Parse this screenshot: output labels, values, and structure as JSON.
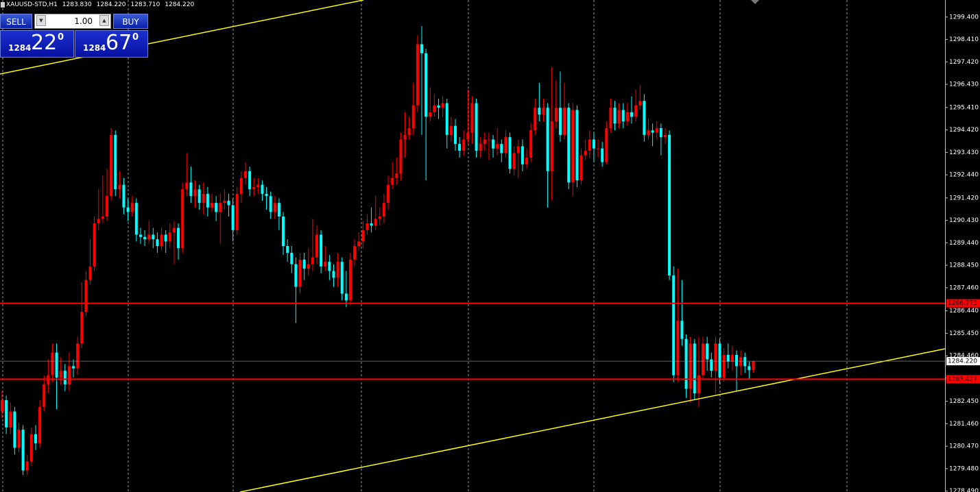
{
  "chart_data": {
    "type": "candlestick",
    "title": "XAUUSD-STD,H1",
    "header_ohlc": [
      "1283.830",
      "1284.220",
      "1283.710",
      "1284.220"
    ],
    "bull_color": "#ff0000",
    "bear_color": "#00ffff",
    "open": [
      1282.0,
      1282.5,
      1281.3,
      1282.0,
      1280.4,
      1281.2,
      1279.4,
      1279.8,
      1281.0,
      1280.6,
      1282.2,
      1283.2,
      1283.6,
      1284.6,
      1283.5,
      1283.8,
      1283.2,
      1284.0,
      1283.9,
      1285.0,
      1286.4,
      1287.8,
      1288.4,
      1290.3,
      1290.5,
      1290.6,
      1291.5,
      1294.2,
      1291.8,
      1292.0,
      1291.0,
      1290.8,
      1291.2,
      1289.8,
      1289.7,
      1289.6,
      1289.8,
      1289.6,
      1289.3,
      1289.8,
      1289.5,
      1289.9,
      1290.1,
      1289.2,
      1291.8,
      1292.1,
      1291.5,
      1291.8,
      1291.2,
      1291.6,
      1291.0,
      1291.2,
      1290.8,
      1291.2,
      1291.3,
      1291.1,
      1290.0,
      1291.6,
      1292.3,
      1292.6,
      1291.8,
      1291.9,
      1292.0,
      1291.6,
      1291.5,
      1290.8,
      1291.2,
      1290.6,
      1289.3,
      1289.0,
      1288.5,
      1287.5,
      1288.7,
      1288.3,
      1288.5,
      1288.8,
      1289.8,
      1288.4,
      1288.6,
      1288.2,
      1287.9,
      1288.6,
      1287.2,
      1286.9,
      1288.7,
      1289.3,
      1289.5,
      1290.0,
      1290.3,
      1290.2,
      1290.5,
      1290.6,
      1291.2,
      1292.0,
      1292.3,
      1292.5,
      1294.0,
      1294.2,
      1294.5,
      1295.5,
      1298.2,
      1297.8,
      1295.0,
      1295.2,
      1295.5,
      1295.4,
      1295.6,
      1294.2,
      1294.6,
      1293.8,
      1293.5,
      1294.0,
      1294.3,
      1295.6,
      1293.5,
      1293.8,
      1294.0,
      1294.0,
      1293.6,
      1293.8,
      1293.4,
      1294.1,
      1292.7,
      1293.4,
      1293.7,
      1292.9,
      1293.2,
      1294.4,
      1295.4,
      1295.1,
      1295.4,
      1292.6,
      1294.8,
      1295.4,
      1294.2,
      1295.4,
      1292.1,
      1295.3,
      1292.2,
      1293.3,
      1293.5,
      1294.0,
      1293.6,
      1293.6,
      1293.0,
      1294.5,
      1295.4,
      1294.7,
      1295.3,
      1294.8,
      1295.2,
      1295.0,
      1295.5,
      1295.7,
      1294.2,
      1294.4,
      1294.3,
      1294.5,
      1294.1,
      1294.2,
      1288.0,
      1283.6,
      1286.0,
      1285.2,
      1283.0,
      1285.0,
      1282.8,
      1283.6,
      1285.0,
      1284.3,
      1283.8,
      1285.0,
      1283.5,
      1284.5,
      1284.2,
      1284.5,
      1284.0,
      1284.4,
      1284.0,
      1283.83
    ],
    "high": [
      1282.9,
      1282.7,
      1282.4,
      1282.2,
      1281.5,
      1281.4,
      1280.1,
      1281.3,
      1281.4,
      1282.5,
      1283.6,
      1284.3,
      1285.0,
      1285.0,
      1284.4,
      1284.1,
      1284.6,
      1284.3,
      1285.3,
      1287.7,
      1288.2,
      1289.6,
      1290.6,
      1291.8,
      1292.4,
      1292.7,
      1294.5,
      1294.4,
      1292.6,
      1292.3,
      1291.4,
      1291.5,
      1291.4,
      1290.1,
      1290.0,
      1290.4,
      1290.1,
      1289.9,
      1290.1,
      1290.0,
      1290.3,
      1290.4,
      1290.3,
      1292.1,
      1293.4,
      1292.8,
      1292.2,
      1292.0,
      1292.1,
      1291.9,
      1291.6,
      1291.5,
      1291.6,
      1291.8,
      1291.6,
      1291.4,
      1291.9,
      1292.6,
      1293.0,
      1292.8,
      1292.3,
      1292.3,
      1292.2,
      1291.9,
      1291.7,
      1291.5,
      1291.4,
      1290.8,
      1289.6,
      1289.3,
      1288.8,
      1289.0,
      1289.0,
      1289.2,
      1290.5,
      1290.2,
      1290.0,
      1289.3,
      1288.9,
      1288.5,
      1289.0,
      1288.8,
      1288.2,
      1289.0,
      1289.6,
      1289.9,
      1290.4,
      1290.7,
      1291.0,
      1291.5,
      1291.0,
      1291.6,
      1292.4,
      1293.0,
      1293.2,
      1294.3,
      1295.2,
      1295.0,
      1296.5,
      1298.6,
      1299.0,
      1298.0,
      1296.3,
      1296.0,
      1295.8,
      1295.9,
      1295.8,
      1295.0,
      1294.9,
      1294.1,
      1294.4,
      1296.2,
      1295.9,
      1295.8,
      1294.1,
      1294.3,
      1294.3,
      1294.2,
      1294.5,
      1294.0,
      1294.4,
      1294.3,
      1293.7,
      1294.0,
      1294.0,
      1293.6,
      1294.7,
      1295.8,
      1296.5,
      1295.8,
      1295.6,
      1297.2,
      1296.6,
      1297.0,
      1296.5,
      1295.6,
      1295.6,
      1295.5,
      1293.6,
      1294.0,
      1294.4,
      1294.3,
      1294.0,
      1293.9,
      1294.8,
      1295.8,
      1295.7,
      1295.6,
      1295.6,
      1295.6,
      1295.9,
      1296.2,
      1296.4,
      1296.0,
      1294.9,
      1294.7,
      1294.8,
      1294.7,
      1294.5,
      1294.4,
      1288.4,
      1288.3,
      1287.8,
      1285.4,
      1285.3,
      1285.2,
      1285.3,
      1285.3,
      1285.3,
      1284.6,
      1285.3,
      1285.2,
      1284.8,
      1285.0,
      1284.9,
      1284.7,
      1284.7,
      1284.6,
      1284.2,
      1284.22
    ],
    "low": [
      1281.7,
      1281.0,
      1281.0,
      1280.1,
      1280.2,
      1279.2,
      1279.2,
      1279.6,
      1280.3,
      1280.4,
      1282.0,
      1282.8,
      1283.3,
      1282.1,
      1283.2,
      1282.9,
      1282.9,
      1283.5,
      1283.6,
      1284.8,
      1286.2,
      1287.6,
      1288.2,
      1290.0,
      1290.3,
      1290.4,
      1291.3,
      1291.5,
      1291.4,
      1290.7,
      1290.4,
      1290.6,
      1289.5,
      1289.4,
      1289.3,
      1289.4,
      1289.2,
      1289.0,
      1289.1,
      1289.0,
      1289.2,
      1288.5,
      1288.7,
      1289.0,
      1291.5,
      1291.2,
      1291.0,
      1290.9,
      1290.7,
      1290.6,
      1290.8,
      1290.4,
      1289.4,
      1290.9,
      1290.6,
      1289.5,
      1289.8,
      1291.2,
      1292.0,
      1291.5,
      1291.5,
      1291.6,
      1291.3,
      1290.9,
      1290.5,
      1290.5,
      1290.0,
      1288.9,
      1288.6,
      1288.1,
      1285.9,
      1287.2,
      1287.8,
      1288.0,
      1288.2,
      1288.5,
      1288.1,
      1288.2,
      1287.8,
      1287.5,
      1287.5,
      1286.9,
      1286.6,
      1286.7,
      1288.4,
      1289.1,
      1289.2,
      1289.8,
      1289.9,
      1290.0,
      1290.2,
      1290.3,
      1290.9,
      1291.8,
      1292.0,
      1292.2,
      1293.2,
      1294.0,
      1294.2,
      1295.2,
      1294.2,
      1292.2,
      1294.8,
      1295.0,
      1294.9,
      1295.0,
      1293.6,
      1293.9,
      1293.5,
      1293.2,
      1293.3,
      1293.8,
      1293.8,
      1293.2,
      1293.2,
      1293.5,
      1293.1,
      1293.2,
      1293.3,
      1293.0,
      1293.2,
      1292.5,
      1292.4,
      1292.3,
      1292.6,
      1292.7,
      1293.0,
      1294.2,
      1294.8,
      1294.8,
      1291.0,
      1291.3,
      1294.5,
      1293.9,
      1294.0,
      1291.8,
      1291.5,
      1291.9,
      1292.0,
      1293.1,
      1293.2,
      1293.0,
      1293.2,
      1292.8,
      1292.9,
      1294.3,
      1294.4,
      1294.5,
      1294.5,
      1294.6,
      1294.7,
      1294.8,
      1295.3,
      1293.9,
      1294.0,
      1293.7,
      1294.0,
      1293.3,
      1293.8,
      1287.8,
      1283.3,
      1283.3,
      1284.9,
      1282.6,
      1282.4,
      1282.5,
      1282.2,
      1283.4,
      1283.8,
      1283.5,
      1282.8,
      1283.2,
      1283.3,
      1283.9,
      1283.8,
      1282.9,
      1283.6,
      1283.7,
      1283.4,
      1283.71
    ],
    "close": [
      1282.5,
      1281.3,
      1282.0,
      1280.4,
      1281.2,
      1279.4,
      1279.8,
      1281.0,
      1280.6,
      1282.2,
      1283.2,
      1283.6,
      1284.6,
      1283.5,
      1283.8,
      1283.2,
      1284.0,
      1283.9,
      1285.0,
      1286.4,
      1287.8,
      1288.4,
      1290.3,
      1290.5,
      1290.6,
      1291.5,
      1294.2,
      1291.8,
      1292.0,
      1291.0,
      1290.8,
      1291.2,
      1289.8,
      1289.7,
      1289.6,
      1289.8,
      1289.6,
      1289.3,
      1289.8,
      1289.5,
      1289.9,
      1290.1,
      1289.2,
      1291.8,
      1292.1,
      1291.5,
      1291.8,
      1291.2,
      1291.6,
      1291.0,
      1291.2,
      1290.8,
      1291.2,
      1291.3,
      1291.1,
      1290.0,
      1291.6,
      1292.3,
      1292.6,
      1291.8,
      1291.9,
      1292.0,
      1291.6,
      1291.5,
      1290.8,
      1291.2,
      1290.6,
      1289.3,
      1289.0,
      1288.5,
      1287.5,
      1288.7,
      1288.3,
      1288.5,
      1288.8,
      1289.8,
      1288.4,
      1288.6,
      1288.2,
      1287.9,
      1288.6,
      1287.2,
      1286.9,
      1288.7,
      1289.3,
      1289.5,
      1290.0,
      1290.3,
      1290.2,
      1290.5,
      1290.6,
      1291.2,
      1292.0,
      1292.3,
      1292.5,
      1294.0,
      1294.2,
      1294.5,
      1295.5,
      1298.2,
      1297.8,
      1295.0,
      1295.2,
      1295.5,
      1295.4,
      1295.6,
      1294.2,
      1294.6,
      1293.8,
      1293.5,
      1294.0,
      1294.3,
      1295.6,
      1293.5,
      1293.8,
      1294.0,
      1294.0,
      1293.6,
      1293.8,
      1293.4,
      1294.1,
      1292.7,
      1293.4,
      1293.7,
      1292.9,
      1293.2,
      1294.4,
      1295.4,
      1295.1,
      1295.4,
      1292.6,
      1294.8,
      1295.4,
      1294.2,
      1295.4,
      1292.1,
      1295.3,
      1292.2,
      1293.3,
      1293.5,
      1294.0,
      1293.6,
      1293.6,
      1293.0,
      1294.5,
      1295.4,
      1294.7,
      1295.3,
      1294.8,
      1295.2,
      1295.0,
      1295.5,
      1295.7,
      1294.2,
      1294.4,
      1294.3,
      1294.5,
      1294.1,
      1294.2,
      1288.0,
      1283.6,
      1286.0,
      1285.2,
      1283.0,
      1285.0,
      1282.8,
      1283.6,
      1285.0,
      1284.3,
      1283.8,
      1285.0,
      1283.5,
      1284.5,
      1284.2,
      1284.5,
      1284.0,
      1284.4,
      1284.0,
      1283.83,
      1284.22
    ],
    "ylim": [
      1278.45,
      1300.15
    ],
    "yticks": [
      {
        "value": 1299.4,
        "label": "1299.400"
      },
      {
        "value": 1298.41,
        "label": "1298.410"
      },
      {
        "value": 1297.42,
        "label": "1297.420"
      },
      {
        "value": 1296.43,
        "label": "1296.430"
      },
      {
        "value": 1295.41,
        "label": "1295.410"
      },
      {
        "value": 1294.42,
        "label": "1294.420"
      },
      {
        "value": 1293.43,
        "label": "1293.430"
      },
      {
        "value": 1292.44,
        "label": "1292.440"
      },
      {
        "value": 1291.42,
        "label": "1291.420"
      },
      {
        "value": 1290.43,
        "label": "1290.430"
      },
      {
        "value": 1289.44,
        "label": "1289.440"
      },
      {
        "value": 1288.45,
        "label": "1288.450"
      },
      {
        "value": 1287.46,
        "label": "1287.460"
      },
      {
        "value": 1286.44,
        "label": "1286.440"
      },
      {
        "value": 1285.45,
        "label": "1285.450"
      },
      {
        "value": 1284.46,
        "label": "1284.460"
      },
      {
        "value": 1283.47,
        "label": "1283.470"
      },
      {
        "value": 1282.45,
        "label": "1282.450"
      },
      {
        "value": 1281.46,
        "label": "1281.460"
      },
      {
        "value": 1280.47,
        "label": "1280.470"
      },
      {
        "value": 1279.48,
        "label": "1279.480"
      },
      {
        "value": 1278.49,
        "label": "1278.490"
      }
    ],
    "levels": [
      {
        "value": 1286.773,
        "label": "1286.773",
        "color": "#ff0000"
      },
      {
        "value": 1283.427,
        "label": "1283.427",
        "color": "#ff0000"
      }
    ],
    "current_price": {
      "value": 1284.22,
      "label": "1284.220",
      "color": "#a0a0a0"
    }
  },
  "trade_panel": {
    "sell": "SELL",
    "buy": "BUY",
    "lots": "1.00",
    "bid": {
      "big": "1284",
      "main": "22",
      "small": "0"
    },
    "ask": {
      "big": "1284",
      "main": "67",
      "small": "0"
    }
  }
}
